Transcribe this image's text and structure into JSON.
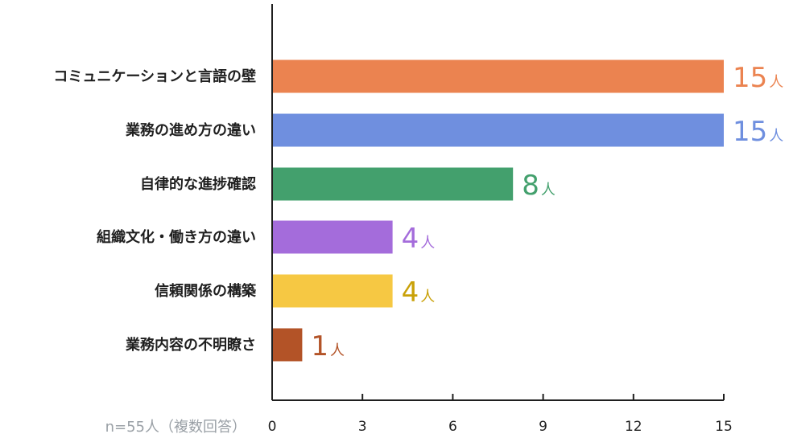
{
  "chart_data": {
    "type": "bar",
    "orientation": "horizontal",
    "categories": [
      "コミュニケーションと言語の壁",
      "業務の進め方の違い",
      "自律的な進捗確認",
      "組織文化・働き方の違い",
      "信頼関係の構築",
      "業務内容の不明瞭さ"
    ],
    "values": [
      15,
      15,
      8,
      4,
      4,
      1
    ],
    "value_unit": "人",
    "colors": [
      "#EB8350",
      "#6F8FDF",
      "#43A06D",
      "#A46CDB",
      "#F6C843",
      "#B35327"
    ],
    "label_colors": [
      "#EB8350",
      "#6F8FDF",
      "#43A06D",
      "#A46CDB",
      "#C9A108",
      "#B35327"
    ],
    "x_ticks": [
      0,
      3,
      6,
      9,
      12,
      15
    ],
    "tick_labels": [
      "0",
      "3",
      "6",
      "9",
      "12",
      "15"
    ],
    "xlim": [
      0,
      15
    ],
    "grid": false,
    "note": "n=55人（複数回答）"
  }
}
